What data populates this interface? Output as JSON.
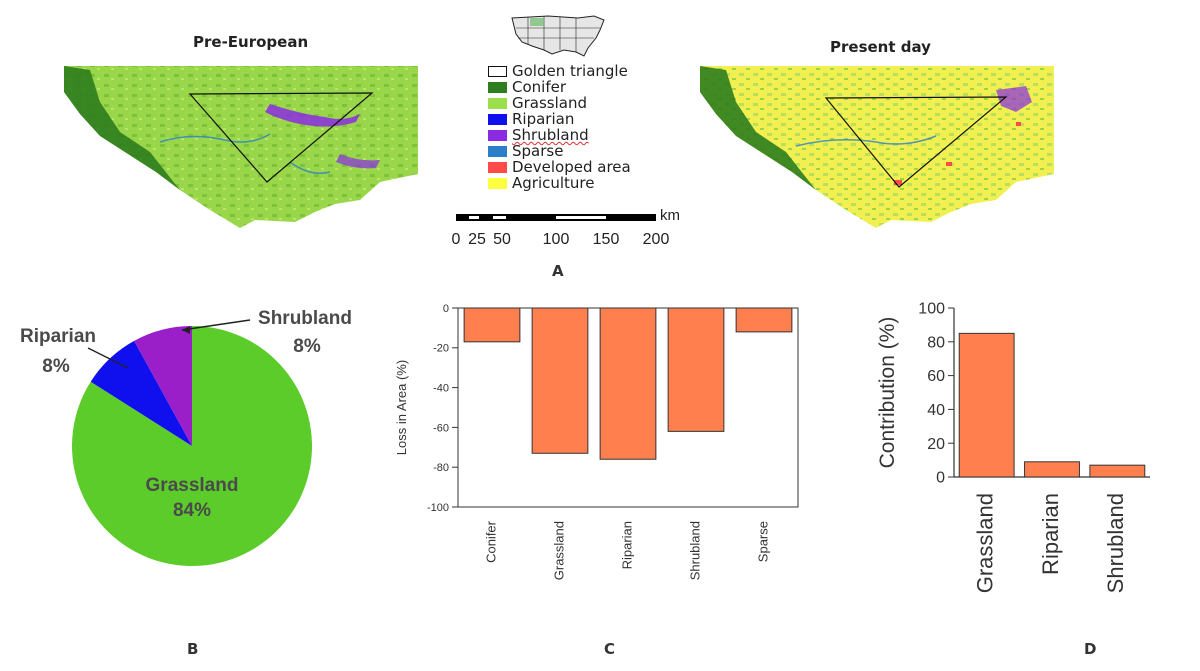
{
  "maps": {
    "pre_european_title": "Pre-European",
    "present_day_title": "Present day"
  },
  "legend": {
    "items": [
      {
        "label": "Golden triangle",
        "color": "#ffffff",
        "outline": true
      },
      {
        "label": "Conifer",
        "color": "#2e7d1e"
      },
      {
        "label": "Grassland",
        "color": "#9be04a"
      },
      {
        "label": "Riparian",
        "color": "#1010ee"
      },
      {
        "label": "Shrubland",
        "color": "#8a2be2"
      },
      {
        "label": "Sparse",
        "color": "#2a7fc8"
      },
      {
        "label": "Developed area",
        "color": "#ff4a4a"
      },
      {
        "label": "Agriculture",
        "color": "#ffff40"
      }
    ]
  },
  "scalebar": {
    "unit": "km",
    "ticks": [
      "0",
      "25",
      "50",
      "100",
      "150",
      "200"
    ]
  },
  "panels": {
    "a": "A",
    "b": "B",
    "c": "C",
    "d": "D"
  },
  "colors": {
    "bar": "#ff7f4f",
    "pie_grassland": "#5ccc2a",
    "pie_riparian": "#1010ee",
    "pie_shrubland": "#9b1fc8"
  },
  "chart_data": [
    {
      "type": "pie",
      "categories": [
        "Grassland",
        "Riparian",
        "Shrubland"
      ],
      "values": [
        84,
        8,
        8
      ],
      "labels": [
        "84%",
        "8%",
        "8%"
      ]
    },
    {
      "type": "bar",
      "categories": [
        "Conifer",
        "Grassland",
        "Riparian",
        "Shrubland",
        "Sparse"
      ],
      "values": [
        -17,
        -73,
        -76,
        -62,
        -12
      ],
      "ylabel": "Loss in Area (%)",
      "ylim": [
        -100,
        0
      ],
      "yticks": [
        0,
        -20,
        -40,
        -60,
        -80,
        -100
      ]
    },
    {
      "type": "bar",
      "categories": [
        "Grassland",
        "Riparian",
        "Shrubland"
      ],
      "values": [
        85,
        9,
        7
      ],
      "ylabel": "Contribution (%)",
      "ylim": [
        0,
        100
      ],
      "yticks": [
        0,
        20,
        40,
        60,
        80,
        100
      ]
    }
  ]
}
